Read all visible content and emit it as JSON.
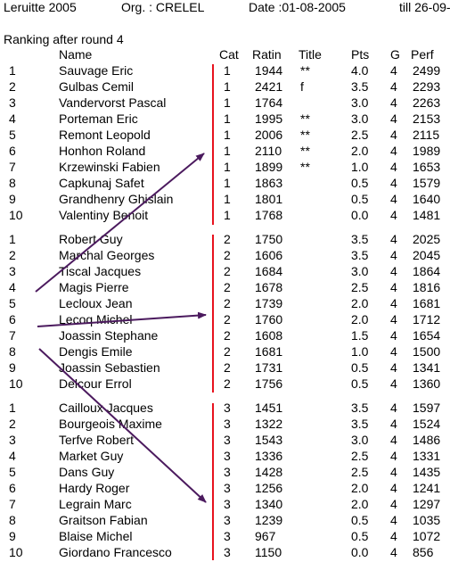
{
  "header": {
    "tournament": "Leruitte 2005",
    "organizer": "Org. : CRELEL",
    "date": "Date :01-08-2005",
    "till": "till 26-09-"
  },
  "subtitle": "Ranking after round 4",
  "columns": {
    "name": "Name",
    "cat": "Cat",
    "rating": "Ratin",
    "title": "Title",
    "pts": "Pts",
    "g": "G",
    "perf": "Perf"
  },
  "groups": [
    {
      "rows": [
        {
          "rank": "1",
          "name": "Sauvage Eric",
          "cat": "1",
          "rating": "1944",
          "title": "**",
          "pts": "4.0",
          "g": "4",
          "perf": "2499"
        },
        {
          "rank": "2",
          "name": "Gulbas Cemil",
          "cat": "1",
          "rating": "2421",
          "title": "f",
          "pts": "3.5",
          "g": "4",
          "perf": "2293"
        },
        {
          "rank": "3",
          "name": "Vandervorst Pascal",
          "cat": "1",
          "rating": "1764",
          "title": "",
          "pts": "3.0",
          "g": "4",
          "perf": "2263"
        },
        {
          "rank": "4",
          "name": "Porteman Eric",
          "cat": "1",
          "rating": "1995",
          "title": "**",
          "pts": "3.0",
          "g": "4",
          "perf": "2153"
        },
        {
          "rank": "5",
          "name": "Remont Leopold",
          "cat": "1",
          "rating": "2006",
          "title": "**",
          "pts": "2.5",
          "g": "4",
          "perf": "2115"
        },
        {
          "rank": "6",
          "name": "Honhon Roland",
          "cat": "1",
          "rating": "2110",
          "title": "**",
          "pts": "2.0",
          "g": "4",
          "perf": "1989"
        },
        {
          "rank": "7",
          "name": "Krzewinski Fabien",
          "cat": "1",
          "rating": "1899",
          "title": "**",
          "pts": "1.0",
          "g": "4",
          "perf": "1653"
        },
        {
          "rank": "8",
          "name": "Capkunaj Safet",
          "cat": "1",
          "rating": "1863",
          "title": "",
          "pts": "0.5",
          "g": "4",
          "perf": "1579"
        },
        {
          "rank": "9",
          "name": "Grandhenry Ghislain",
          "cat": "1",
          "rating": "1801",
          "title": "",
          "pts": "0.5",
          "g": "4",
          "perf": "1640"
        },
        {
          "rank": "10",
          "name": "Valentiny Benoit",
          "cat": "1",
          "rating": "1768",
          "title": "",
          "pts": "0.0",
          "g": "4",
          "perf": "1481"
        }
      ]
    },
    {
      "rows": [
        {
          "rank": "1",
          "name": "Robert Guy",
          "cat": "2",
          "rating": "1750",
          "title": "",
          "pts": "3.5",
          "g": "4",
          "perf": "2025"
        },
        {
          "rank": "2",
          "name": "Marchal Georges",
          "cat": "2",
          "rating": "1606",
          "title": "",
          "pts": "3.5",
          "g": "4",
          "perf": "2045"
        },
        {
          "rank": "3",
          "name": "Tiscal Jacques",
          "cat": "2",
          "rating": "1684",
          "title": "",
          "pts": "3.0",
          "g": "4",
          "perf": "1864"
        },
        {
          "rank": "4",
          "name": "Magis Pierre",
          "cat": "2",
          "rating": "1678",
          "title": "",
          "pts": "2.5",
          "g": "4",
          "perf": "1816"
        },
        {
          "rank": "5",
          "name": "Lecloux Jean",
          "cat": "2",
          "rating": "1739",
          "title": "",
          "pts": "2.0",
          "g": "4",
          "perf": "1681"
        },
        {
          "rank": "6",
          "name": "Lecoq Michel",
          "cat": "2",
          "rating": "1760",
          "title": "",
          "pts": "2.0",
          "g": "4",
          "perf": "1712"
        },
        {
          "rank": "7",
          "name": "Joassin Stephane",
          "cat": "2",
          "rating": "1608",
          "title": "",
          "pts": "1.5",
          "g": "4",
          "perf": "1654"
        },
        {
          "rank": "8",
          "name": "Dengis Emile",
          "cat": "2",
          "rating": "1681",
          "title": "",
          "pts": "1.0",
          "g": "4",
          "perf": "1500"
        },
        {
          "rank": "9",
          "name": "Joassin Sebastien",
          "cat": "2",
          "rating": "1731",
          "title": "",
          "pts": "0.5",
          "g": "4",
          "perf": "1341"
        },
        {
          "rank": "10",
          "name": "Delcour Errol",
          "cat": "2",
          "rating": "1756",
          "title": "",
          "pts": "0.5",
          "g": "4",
          "perf": "1360"
        }
      ]
    },
    {
      "rows": [
        {
          "rank": "1",
          "name": "Cailloux Jacques",
          "cat": "3",
          "rating": "1451",
          "title": "",
          "pts": "3.5",
          "g": "4",
          "perf": "1597"
        },
        {
          "rank": "2",
          "name": "Bourgeois Maxime",
          "cat": "3",
          "rating": "1322",
          "title": "",
          "pts": "3.5",
          "g": "4",
          "perf": "1524"
        },
        {
          "rank": "3",
          "name": "Terfve Robert",
          "cat": "3",
          "rating": "1543",
          "title": "",
          "pts": "3.0",
          "g": "4",
          "perf": "1486"
        },
        {
          "rank": "4",
          "name": "Market Guy",
          "cat": "3",
          "rating": "1336",
          "title": "",
          "pts": "2.5",
          "g": "4",
          "perf": "1331"
        },
        {
          "rank": "5",
          "name": "Dans Guy",
          "cat": "3",
          "rating": "1428",
          "title": "",
          "pts": "2.5",
          "g": "4",
          "perf": "1435"
        },
        {
          "rank": "6",
          "name": "Hardy Roger",
          "cat": "3",
          "rating": "1256",
          "title": "",
          "pts": "2.0",
          "g": "4",
          "perf": "1241"
        },
        {
          "rank": "7",
          "name": "Legrain Marc",
          "cat": "3",
          "rating": "1340",
          "title": "",
          "pts": "2.0",
          "g": "4",
          "perf": "1297"
        },
        {
          "rank": "8",
          "name": "Graitson Fabian",
          "cat": "3",
          "rating": "1239",
          "title": "",
          "pts": "0.5",
          "g": "4",
          "perf": "1035"
        },
        {
          "rank": "9",
          "name": "Blaise Michel",
          "cat": "3",
          "rating": "967",
          "title": "",
          "pts": "0.5",
          "g": "4",
          "perf": "1072"
        },
        {
          "rank": "10",
          "name": "Giordano Francesco",
          "cat": "3",
          "rating": "1150",
          "title": "",
          "pts": "0.0",
          "g": "4",
          "perf": "856"
        }
      ]
    }
  ],
  "annotation_colors": {
    "separator_line": "#e8121e",
    "arrow": "#4b1a5e"
  }
}
